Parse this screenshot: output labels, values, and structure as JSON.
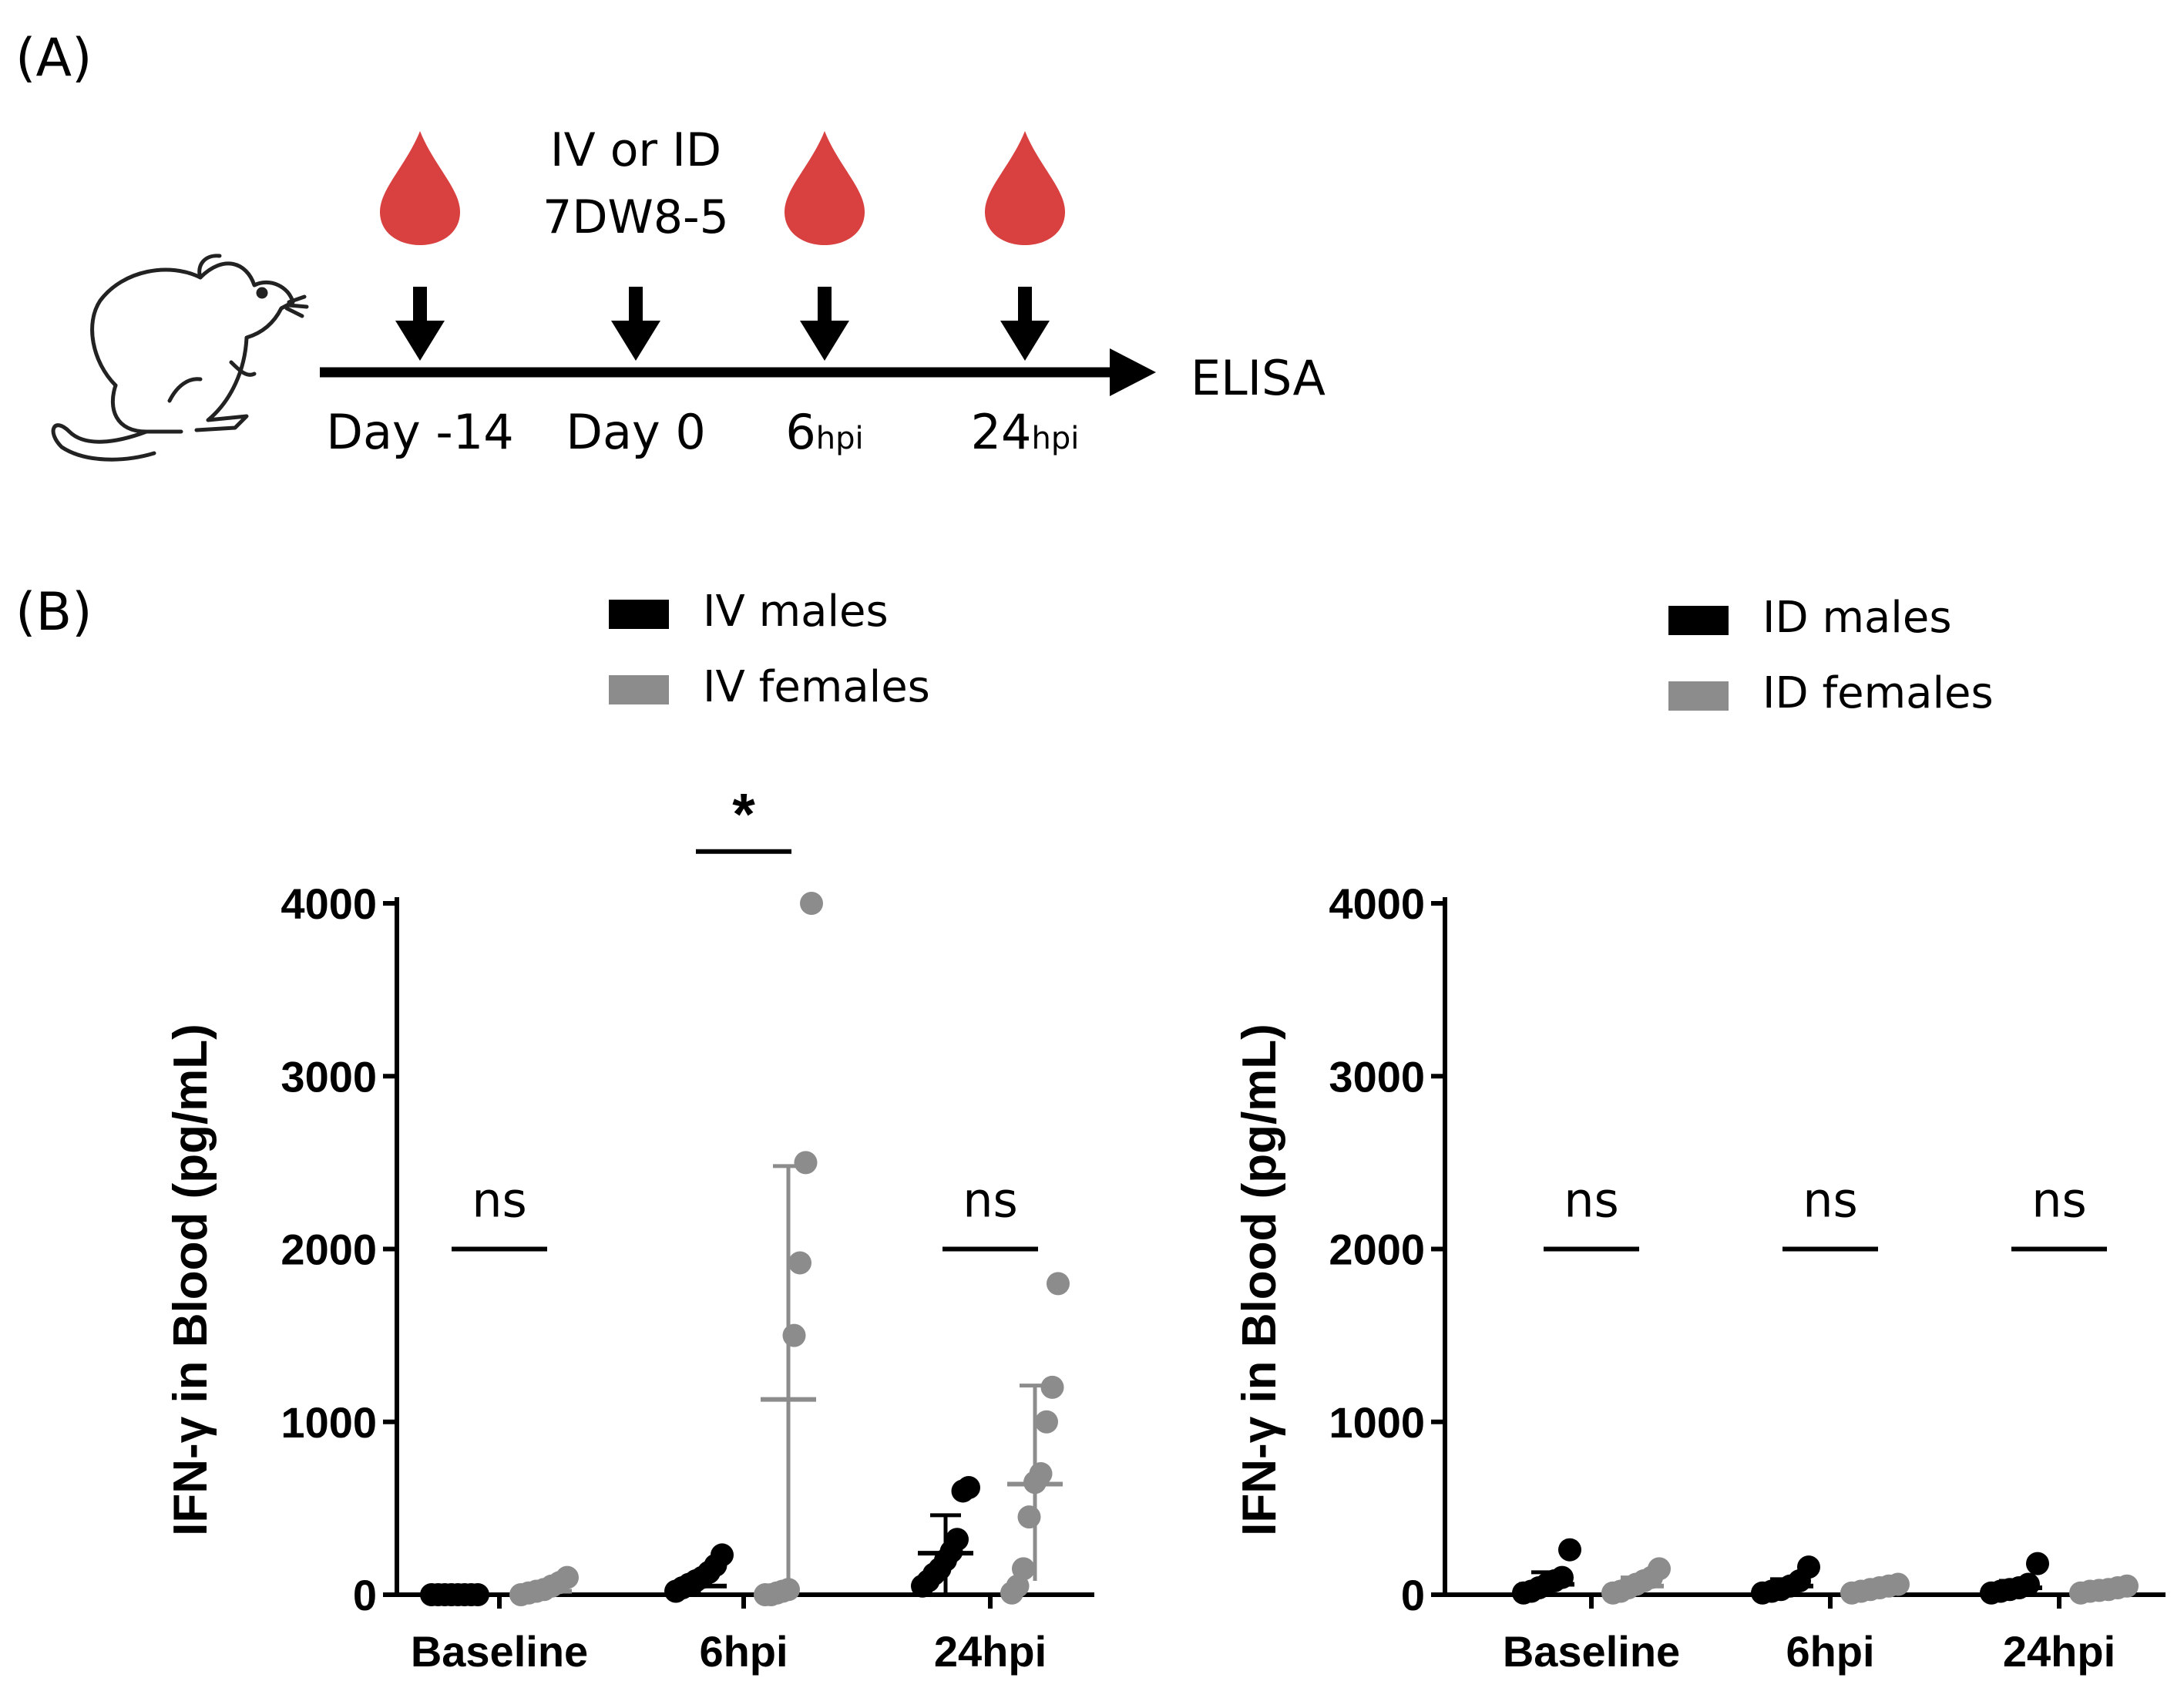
{
  "panel_a": {
    "label": "(A)",
    "injection_line1": "IV or ID",
    "injection_line2": "7DW8-5",
    "timeline": [
      {
        "main": "Day -14",
        "sub": "",
        "blood_draw": true
      },
      {
        "main": "Day 0",
        "sub": "",
        "blood_draw": false
      },
      {
        "main": "6",
        "sub": "hpi",
        "blood_draw": true
      },
      {
        "main": "24",
        "sub": "hpi",
        "blood_draw": true
      }
    ],
    "endpoint": "ELISA",
    "colors": {
      "blood": "#d94040",
      "arrow": "#000000"
    }
  },
  "panel_b": {
    "label": "(B)"
  },
  "chart_data": [
    {
      "type": "scatter",
      "title": "",
      "ylabel": "IFN-γ in Blood (pg/mL)",
      "xlabel": "",
      "ylim": [
        0,
        4000
      ],
      "yticks": [
        0,
        1000,
        2000,
        3000,
        4000
      ],
      "categories": [
        "Baseline",
        "6hpi",
        "24hpi"
      ],
      "legend": [
        {
          "name": "IV males",
          "color": "#000000"
        },
        {
          "name": "IV females",
          "color": "#8c8c8c"
        }
      ],
      "significance": [
        "ns",
        "*",
        "ns"
      ],
      "significance_bar_values": [
        2000,
        4300,
        2000
      ],
      "series": [
        {
          "name": "IV males",
          "color": "#000000",
          "points": [
            [
              0,
              0,
              0,
              0,
              0,
              0,
              0,
              0
            ],
            [
              20,
              40,
              60,
              80,
              100,
              130,
              170,
              230
            ],
            [
              50,
              80,
              120,
              150,
              200,
              250,
              320,
              600,
              620
            ]
          ],
          "mean": [
            0,
            50,
            240
          ],
          "sd_upper": [
            0,
            80,
            460
          ],
          "sd_lower": [
            0,
            0,
            0
          ]
        },
        {
          "name": "IV females",
          "color": "#8c8c8c",
          "points": [
            [
              0,
              10,
              20,
              30,
              50,
              70,
              100
            ],
            [
              0,
              0,
              10,
              20,
              30,
              1500,
              1920,
              2500,
              4000
            ],
            [
              10,
              50,
              150,
              450,
              650,
              700,
              1000,
              1200,
              1800
            ]
          ],
          "mean": [
            20,
            1130,
            640
          ],
          "sd_upper": [
            60,
            2480,
            1210
          ],
          "sd_lower": [
            0,
            0,
            80
          ]
        }
      ]
    },
    {
      "type": "scatter",
      "title": "",
      "ylabel": "IFN-γ in Blood (pg/mL)",
      "xlabel": "",
      "ylim": [
        0,
        4000
      ],
      "yticks": [
        0,
        1000,
        2000,
        3000,
        4000
      ],
      "categories": [
        "Baseline",
        "6hpi",
        "24hpi"
      ],
      "legend": [
        {
          "name": "ID males",
          "color": "#000000"
        },
        {
          "name": "ID females",
          "color": "#8c8c8c"
        }
      ],
      "significance": [
        "ns",
        "ns",
        "ns"
      ],
      "significance_bar_values": [
        2000,
        2000,
        2000
      ],
      "series": [
        {
          "name": "ID males",
          "color": "#000000",
          "points": [
            [
              10,
              20,
              40,
              60,
              80,
              100,
              260
            ],
            [
              10,
              20,
              30,
              50,
              80,
              160
            ],
            [
              10,
              20,
              30,
              40,
              60,
              180
            ]
          ],
          "mean": [
            60,
            50,
            40
          ],
          "sd_upper": [
            130,
            90,
            80
          ],
          "sd_lower": [
            0,
            0,
            0
          ]
        },
        {
          "name": "ID females",
          "color": "#8c8c8c",
          "points": [
            [
              10,
              20,
              40,
              60,
              80,
              100,
              150
            ],
            [
              10,
              20,
              30,
              40,
              50,
              60
            ],
            [
              10,
              20,
              25,
              30,
              40,
              50
            ]
          ],
          "mean": [
            50,
            35,
            30
          ],
          "sd_upper": [
            100,
            60,
            50
          ],
          "sd_lower": [
            0,
            0,
            0
          ]
        }
      ]
    }
  ]
}
